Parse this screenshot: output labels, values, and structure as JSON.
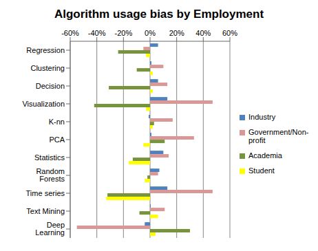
{
  "chart_data": {
    "type": "bar",
    "title": "Algorithm  usage bias by Employment",
    "orientation": "horizontal",
    "categories": [
      "Regression",
      "Clustering",
      "Decision",
      "Visualization",
      "K-nn",
      "PCA",
      "Statistics",
      "Random Forests",
      "Time series",
      "Text Mining",
      "Deep Learning"
    ],
    "series": [
      {
        "name": "Industry",
        "color": "#4f81bd",
        "values": [
          6,
          1,
          6,
          13,
          -1,
          1,
          10,
          7,
          13,
          0.5,
          -4
        ]
      },
      {
        "name": "Government/Non-profit",
        "color": "#d99795",
        "values": [
          -5,
          10,
          13,
          47,
          17,
          33,
          14,
          6,
          47,
          11,
          -55
        ]
      },
      {
        "name": "Academia",
        "color": "#77933c",
        "values": [
          -24,
          -10,
          -31,
          -42,
          3,
          11,
          -13,
          -2,
          -32,
          -8,
          30
        ]
      },
      {
        "name": "Student",
        "color": "#ffff00",
        "values": [
          -3,
          2,
          2,
          -3,
          2,
          -5,
          -16,
          -4,
          -33,
          6,
          4
        ]
      }
    ],
    "xlim": [
      -60,
      60
    ],
    "xticks": [
      {
        "value": -60,
        "label": "-60%"
      },
      {
        "value": -40,
        "label": "-40%"
      },
      {
        "value": -20,
        "label": "-20%"
      },
      {
        "value": 0,
        "label": "0%"
      },
      {
        "value": 20,
        "label": "20%"
      },
      {
        "value": 40,
        "label": "40%"
      },
      {
        "value": 60,
        "label": "60%"
      }
    ],
    "grid": true,
    "legend": "right"
  }
}
